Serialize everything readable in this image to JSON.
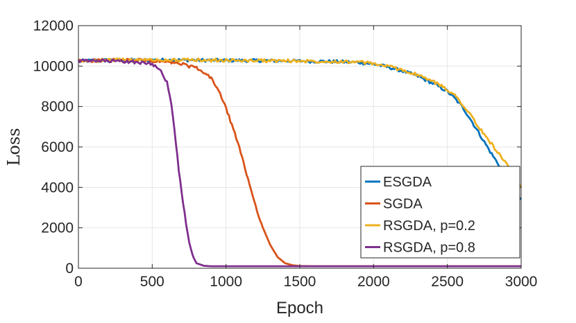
{
  "chart_data": {
    "type": "line",
    "title": "",
    "xlabel": "Epoch",
    "ylabel": "Loss",
    "xlim": [
      0,
      3000
    ],
    "ylim": [
      0,
      12000
    ],
    "xticks": [
      0,
      500,
      1000,
      1500,
      2000,
      2500,
      3000
    ],
    "yticks": [
      0,
      2000,
      4000,
      6000,
      8000,
      10000,
      12000
    ],
    "grid": true,
    "legend_position": "bottom-right",
    "series": [
      {
        "name": "ESGDA",
        "color": "#0072BD",
        "x": [
          0,
          250,
          500,
          750,
          1000,
          1250,
          1500,
          1750,
          1900,
          2000,
          2100,
          2200,
          2300,
          2400,
          2500,
          2550,
          2600,
          2650,
          2700,
          2750,
          2800,
          2850,
          2900,
          2950,
          3000
        ],
        "y": [
          10250,
          10300,
          10300,
          10300,
          10280,
          10270,
          10250,
          10220,
          10180,
          10100,
          9950,
          9750,
          9500,
          9150,
          8750,
          8400,
          8000,
          7450,
          6850,
          6250,
          5650,
          5100,
          4550,
          3950,
          3350
        ]
      },
      {
        "name": "SGDA",
        "color": "#D95319",
        "x": [
          0,
          200,
          400,
          600,
          700,
          800,
          900,
          950,
          1000,
          1050,
          1100,
          1150,
          1200,
          1250,
          1300,
          1350,
          1400,
          1450,
          1500,
          1600,
          2000,
          3000
        ],
        "y": [
          10250,
          10300,
          10280,
          10200,
          10100,
          9900,
          9400,
          8800,
          7900,
          6900,
          5700,
          4400,
          3100,
          2000,
          1150,
          550,
          250,
          150,
          110,
          100,
          100,
          100
        ]
      },
      {
        "name": "RSGDA, p=0.2",
        "color": "#EDB120",
        "x": [
          0,
          250,
          500,
          750,
          1000,
          1250,
          1500,
          1750,
          1900,
          2000,
          2100,
          2200,
          2300,
          2400,
          2500,
          2550,
          2600,
          2650,
          2700,
          2750,
          2800,
          2850,
          2900,
          2950,
          3000
        ],
        "y": [
          10250,
          10300,
          10300,
          10300,
          10280,
          10270,
          10250,
          10230,
          10200,
          10120,
          9980,
          9800,
          9550,
          9250,
          8850,
          8550,
          8150,
          7650,
          7100,
          6600,
          6150,
          5650,
          5150,
          4600,
          3950
        ]
      },
      {
        "name": "RSGDA, p=0.8",
        "color": "#7E2F8E",
        "x": [
          0,
          200,
          400,
          500,
          550,
          600,
          625,
          650,
          675,
          700,
          725,
          750,
          775,
          800,
          850,
          900,
          1000,
          1500,
          2000,
          3000
        ],
        "y": [
          10250,
          10250,
          10200,
          10100,
          9900,
          9200,
          8300,
          6900,
          5200,
          3700,
          2400,
          1300,
          600,
          250,
          120,
          100,
          100,
          100,
          100,
          100
        ]
      }
    ]
  }
}
